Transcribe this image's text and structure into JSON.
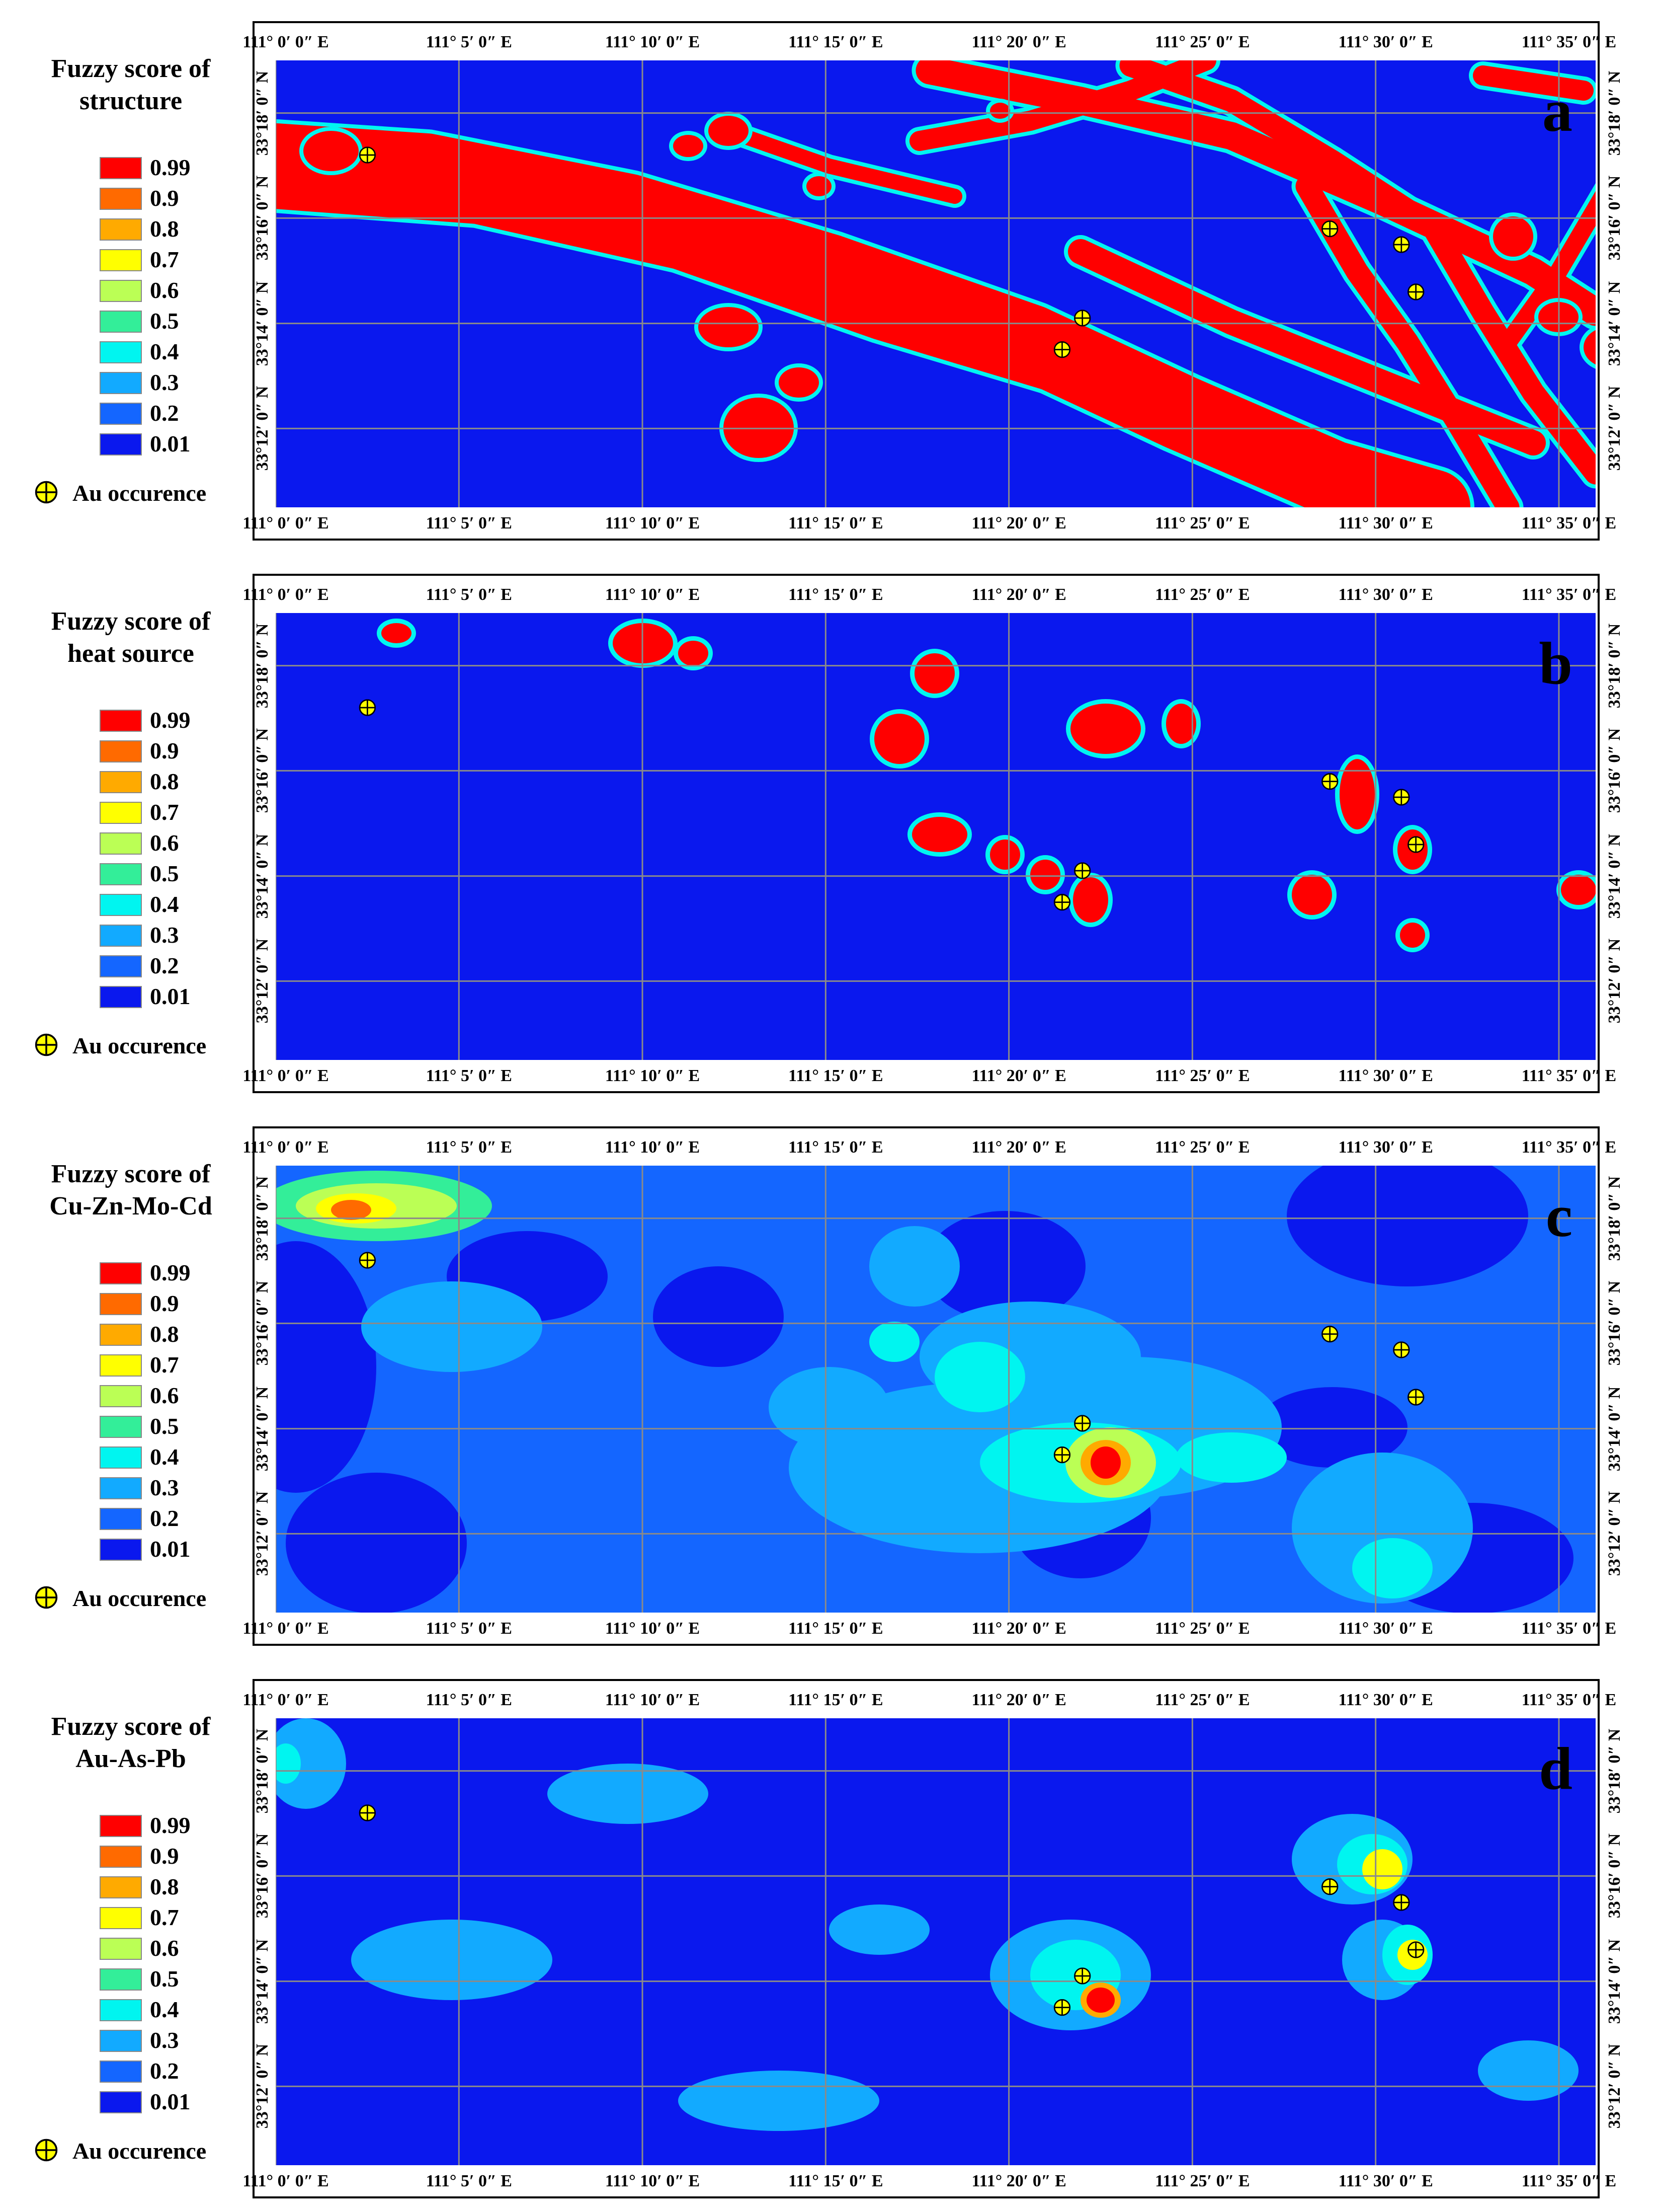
{
  "legend_classes": [
    {
      "label": "0.99",
      "color": "#ff0000"
    },
    {
      "label": "0.9",
      "color": "#ff6a00"
    },
    {
      "label": "0.8",
      "color": "#ffaa00"
    },
    {
      "label": "0.7",
      "color": "#ffff00"
    },
    {
      "label": "0.6",
      "color": "#bbff55"
    },
    {
      "label": "0.5",
      "color": "#33ee99"
    },
    {
      "label": "0.4",
      "color": "#00f5f0"
    },
    {
      "label": "0.3",
      "color": "#12aaff"
    },
    {
      "label": "0.2",
      "color": "#1466ff"
    },
    {
      "label": "0.01",
      "color": "#0a18ee"
    }
  ],
  "occurrence_label": "Au occurence",
  "occurrence_colors": {
    "fill": "#ffff00",
    "stroke": "#000000"
  },
  "lon_labels": [
    "111° 0′ 0″ E",
    "111° 5′ 0″ E",
    "111° 10′ 0″ E",
    "111° 15′ 0″ E",
    "111° 20′ 0″ E",
    "111° 25′ 0″ E",
    "111° 30′ 0″ E",
    "111° 35′ 0″ E"
  ],
  "lat_labels": [
    "33°18′ 0″ N",
    "33°16′ 0″ N",
    "33°14′ 0″ N",
    "33°12′ 0″ N"
  ],
  "extent": {
    "lon_min": 111.0,
    "lon_max": 111.6,
    "lat_min": 33.175,
    "lat_max": 33.3167
  },
  "au_occurrences": [
    {
      "lon": 111.0417,
      "lat": 33.2867
    },
    {
      "lon": 111.3667,
      "lat": 33.235
    },
    {
      "lon": 111.3575,
      "lat": 33.225
    },
    {
      "lon": 111.4792,
      "lat": 33.2633
    },
    {
      "lon": 111.5117,
      "lat": 33.2583
    },
    {
      "lon": 111.5183,
      "lat": 33.2433
    }
  ],
  "panels": [
    {
      "letter": "a",
      "title_lines": [
        "Fuzzy score of",
        "structure"
      ],
      "layer_type": "structure"
    },
    {
      "letter": "b",
      "title_lines": [
        "Fuzzy score of",
        "heat source"
      ],
      "layer_type": "heat"
    },
    {
      "letter": "c",
      "title_lines": [
        "Fuzzy score of",
        "Cu-Zn-Mo-Cd"
      ],
      "layer_type": "cu"
    },
    {
      "letter": "d",
      "title_lines": [
        "Fuzzy score of",
        "Au-As-Pb"
      ],
      "layer_type": "au"
    }
  ]
}
